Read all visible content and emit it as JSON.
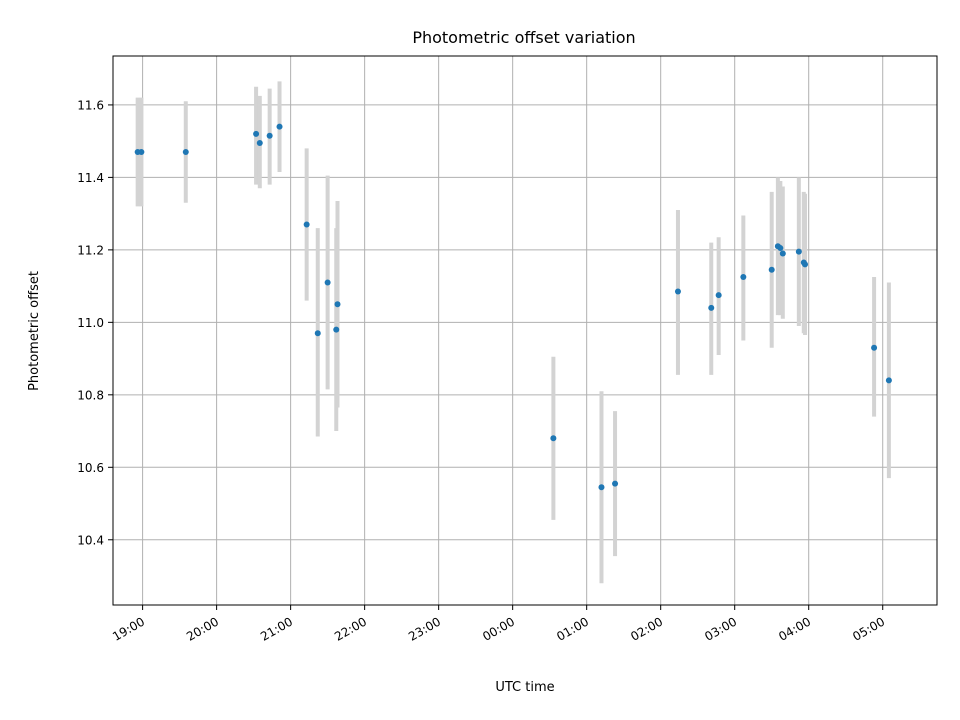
{
  "chart_data": {
    "type": "scatter",
    "title": "Photometric offset variation",
    "xlabel": "UTC time",
    "ylabel": "Photometric offset",
    "x_is_time": true,
    "xlim": [
      "18:36",
      "05:44"
    ],
    "ylim": [
      10.22,
      11.735
    ],
    "xticks": [
      "19:00",
      "20:00",
      "21:00",
      "22:00",
      "23:00",
      "00:00",
      "01:00",
      "02:00",
      "03:00",
      "04:00",
      "05:00"
    ],
    "yticks": [
      10.4,
      10.6,
      10.8,
      11.0,
      11.2,
      11.4,
      11.6
    ],
    "ytick_labels": [
      "10.4",
      "10.6",
      "10.8",
      "11.0",
      "11.2",
      "11.4",
      "11.6"
    ],
    "grid": true,
    "colors": {
      "point": "#1f77b4",
      "errorbar": "#d3d3d3",
      "grid": "#b0b0b0"
    },
    "points": [
      {
        "t": "18:56",
        "y": 11.47,
        "lo": 11.32,
        "hi": 11.62
      },
      {
        "t": "18:59",
        "y": 11.47,
        "lo": 11.32,
        "hi": 11.62
      },
      {
        "t": "19:35",
        "y": 11.47,
        "lo": 11.33,
        "hi": 11.61
      },
      {
        "t": "20:32",
        "y": 11.52,
        "lo": 11.38,
        "hi": 11.65
      },
      {
        "t": "20:35",
        "y": 11.495,
        "lo": 11.37,
        "hi": 11.625
      },
      {
        "t": "20:43",
        "y": 11.515,
        "lo": 11.38,
        "hi": 11.645
      },
      {
        "t": "20:51",
        "y": 11.54,
        "lo": 11.415,
        "hi": 11.665
      },
      {
        "t": "21:13",
        "y": 11.27,
        "lo": 11.06,
        "hi": 11.48
      },
      {
        "t": "21:22",
        "y": 10.97,
        "lo": 10.685,
        "hi": 11.26
      },
      {
        "t": "21:30",
        "y": 11.11,
        "lo": 10.815,
        "hi": 11.405
      },
      {
        "t": "21:37",
        "y": 10.98,
        "lo": 10.7,
        "hi": 11.26
      },
      {
        "t": "21:38",
        "y": 11.05,
        "lo": 10.765,
        "hi": 11.335
      },
      {
        "t": "00:33",
        "y": 10.68,
        "lo": 10.455,
        "hi": 10.905
      },
      {
        "t": "01:12",
        "y": 10.545,
        "lo": 10.28,
        "hi": 10.81
      },
      {
        "t": "01:23",
        "y": 10.555,
        "lo": 10.355,
        "hi": 10.755
      },
      {
        "t": "02:14",
        "y": 11.085,
        "lo": 10.855,
        "hi": 11.31
      },
      {
        "t": "02:41",
        "y": 11.04,
        "lo": 10.855,
        "hi": 11.22
      },
      {
        "t": "02:47",
        "y": 11.075,
        "lo": 10.91,
        "hi": 11.235
      },
      {
        "t": "03:07",
        "y": 11.125,
        "lo": 10.95,
        "hi": 11.295
      },
      {
        "t": "03:30",
        "y": 11.145,
        "lo": 10.93,
        "hi": 11.36
      },
      {
        "t": "03:35",
        "y": 11.21,
        "lo": 11.02,
        "hi": 11.4
      },
      {
        "t": "03:37",
        "y": 11.205,
        "lo": 11.02,
        "hi": 11.39
      },
      {
        "t": "03:39",
        "y": 11.19,
        "lo": 11.01,
        "hi": 11.375
      },
      {
        "t": "03:52",
        "y": 11.195,
        "lo": 10.99,
        "hi": 11.4
      },
      {
        "t": "03:56",
        "y": 11.165,
        "lo": 10.97,
        "hi": 11.36
      },
      {
        "t": "03:57",
        "y": 11.16,
        "lo": 10.965,
        "hi": 11.355
      },
      {
        "t": "04:53",
        "y": 10.93,
        "lo": 10.74,
        "hi": 11.125
      },
      {
        "t": "05:05",
        "y": 10.84,
        "lo": 10.57,
        "hi": 11.11
      }
    ]
  }
}
